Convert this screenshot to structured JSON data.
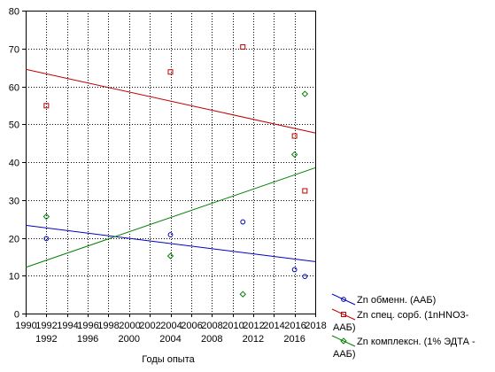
{
  "chart_data": {
    "type": "scatter",
    "title": "",
    "xlabel": "Годы опыта",
    "ylabel": "",
    "xlim": [
      1990,
      2018
    ],
    "ylim": [
      0,
      80
    ],
    "x_ticks_top_row": [
      "1990",
      "1992",
      "1994",
      "1996",
      "1998",
      "2000",
      "2002",
      "2004",
      "2006",
      "2008",
      "2010",
      "2012",
      "2014",
      "2016",
      "2018"
    ],
    "x_ticks_bottom_row": [
      "1992",
      "1996",
      "2000",
      "2004",
      "2008",
      "2012",
      "2016"
    ],
    "y_ticks": [
      "0",
      "10",
      "20",
      "30",
      "40",
      "50",
      "60",
      "70",
      "80"
    ],
    "grid": true,
    "legend_position": "bottom-right",
    "series": [
      {
        "name": "Zn обменн. (ААБ)",
        "label_lines": [
          "Zn обменн. (ААБ)"
        ],
        "color": "#0000c0",
        "marker": "circle",
        "x": [
          1992,
          2004,
          2011,
          2016,
          2017
        ],
        "y": [
          19.8,
          20.8,
          24.2,
          11.6,
          9.8
        ],
        "trend": [
          [
            1990,
            23.3
          ],
          [
            2018,
            13.7
          ]
        ]
      },
      {
        "name": "Zn спец. сорб. (1nHNO3-ААБ)",
        "label_lines": [
          "Zn спец. сорб. (1nHNO3-",
          "ААБ)"
        ],
        "color": "#c00000",
        "marker": "square",
        "x": [
          1992,
          2004,
          2011,
          2016,
          2017
        ],
        "y": [
          54.9,
          63.8,
          70.4,
          46.9,
          32.4
        ],
        "trend": [
          [
            1990,
            64.5
          ],
          [
            2018,
            47.7
          ]
        ]
      },
      {
        "name": "Zn комплексн. (1% ЭДТА - ААБ)",
        "label_lines": [
          "Zn комплексн. (1% ЭДТА -",
          "ААБ)"
        ],
        "color": "#008000",
        "marker": "diamond",
        "x": [
          1992,
          2004,
          2011,
          2016,
          2017
        ],
        "y": [
          25.6,
          15.2,
          5.1,
          42.0,
          58.0
        ],
        "trend": [
          [
            1990,
            12.2
          ],
          [
            2018,
            38.5
          ]
        ]
      }
    ]
  }
}
